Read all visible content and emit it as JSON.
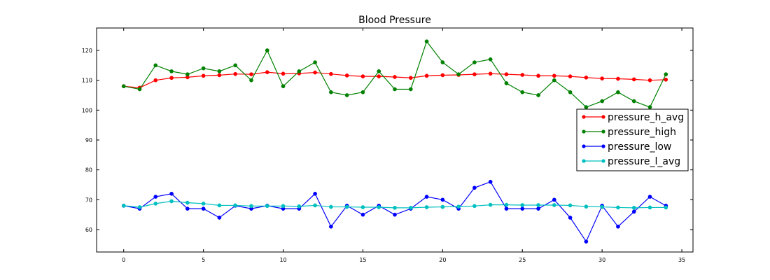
{
  "chart_data": {
    "type": "line",
    "title": "Blood Pressure",
    "xlabel": "",
    "ylabel": "",
    "xlim": [
      -1.7,
      35.7
    ],
    "ylim": [
      52.5,
      127.5
    ],
    "x_ticks": [
      0,
      5,
      10,
      15,
      20,
      25,
      30,
      35
    ],
    "y_ticks": [
      60,
      70,
      80,
      90,
      100,
      110,
      120
    ],
    "grid": false,
    "legend_position": "center-right",
    "series": [
      {
        "name": "pressure_h_avg",
        "color": "#ff0000",
        "values": [
          108,
          107.5,
          110,
          110.8,
          111,
          111.5,
          111.7,
          112.1,
          112,
          112.7,
          112.2,
          112.3,
          112.6,
          112.1,
          111.6,
          111.3,
          111.3,
          111.1,
          110.8,
          111.5,
          111.7,
          111.8,
          112,
          112.2,
          112,
          111.8,
          111.5,
          111.5,
          111.3,
          110.9,
          110.6,
          110.5,
          110.3,
          110,
          110.2
        ]
      },
      {
        "name": "pressure_high",
        "color": "#008000",
        "values": [
          108,
          107,
          115,
          113,
          112,
          114,
          113,
          115,
          110,
          120,
          108,
          113,
          116,
          106,
          105,
          106,
          113,
          107,
          107,
          123,
          116,
          112,
          116,
          117,
          109,
          106,
          105,
          110,
          106,
          101,
          103,
          106,
          103,
          101,
          112
        ]
      },
      {
        "name": "pressure_low",
        "color": "#0000ff",
        "values": [
          68,
          67,
          71,
          72,
          67,
          67,
          64,
          68,
          67,
          68,
          67,
          67,
          72,
          61,
          68,
          65,
          68,
          65,
          67,
          71,
          70,
          67,
          74,
          76,
          67,
          67,
          67,
          70,
          64,
          56,
          68,
          61,
          66,
          71,
          68
        ]
      },
      {
        "name": "pressure_l_avg",
        "color": "#00bfbf",
        "values": [
          68,
          67.5,
          68.7,
          69.5,
          69,
          68.7,
          68.1,
          68.1,
          67.9,
          67.9,
          67.9,
          67.8,
          68.1,
          67.6,
          67.6,
          67.5,
          67.5,
          67.3,
          67.3,
          67.5,
          67.6,
          67.7,
          67.9,
          68.3,
          68.3,
          68.2,
          68.2,
          68.2,
          68.1,
          67.7,
          67.6,
          67.4,
          67.3,
          67.4,
          67.4
        ]
      }
    ]
  }
}
